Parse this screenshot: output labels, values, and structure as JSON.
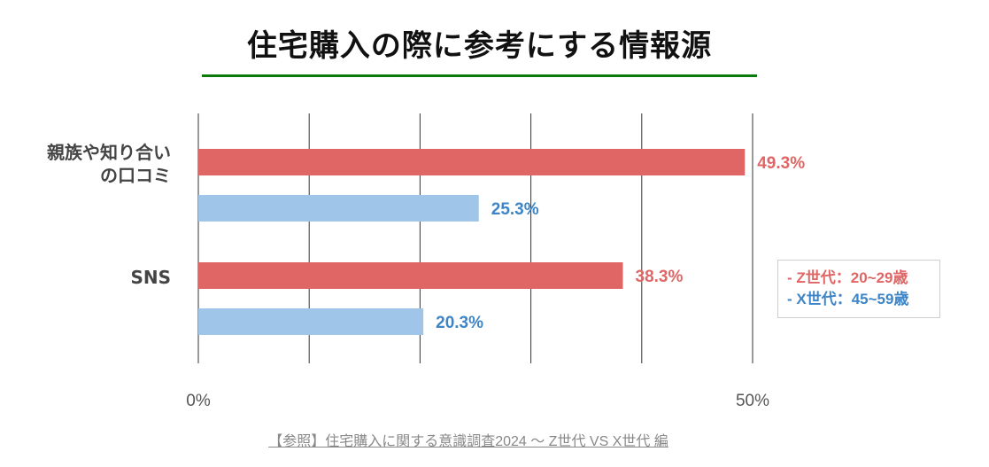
{
  "title": "住宅購入の際に参考にする情報源",
  "colors": {
    "z": "#e06666",
    "x": "#9fc5e8",
    "x_label": "#3d85c6",
    "underline": "#0b7a0b"
  },
  "legend": {
    "z_label": "- Z世代：20~29歳",
    "x_label": "- X世代：45~59歳"
  },
  "source": "【参照】住宅購入に関する意識調査2024 〜 Z世代 VS X世代 編",
  "chart_data": {
    "type": "bar",
    "orientation": "horizontal",
    "categories": [
      "親族や知り合いの口コミ",
      "SNS"
    ],
    "category_lines": [
      [
        "親族や知り合い",
        "の口コミ"
      ],
      [
        "SNS"
      ]
    ],
    "series": [
      {
        "name": "Z世代：20~29歳",
        "values": [
          49.3,
          38.3
        ],
        "labels": [
          "49.3%",
          "38.3%"
        ]
      },
      {
        "name": "X世代：45~59歳",
        "values": [
          25.3,
          20.3
        ],
        "labels": [
          "25.3%",
          "20.3%"
        ]
      }
    ],
    "xlim": [
      0,
      50
    ],
    "tick_labels": [
      "0%",
      "50%"
    ],
    "tick_values": [
      0,
      50
    ],
    "gridlines": [
      0,
      10,
      20,
      30,
      40,
      50
    ],
    "legend_position": "right"
  }
}
